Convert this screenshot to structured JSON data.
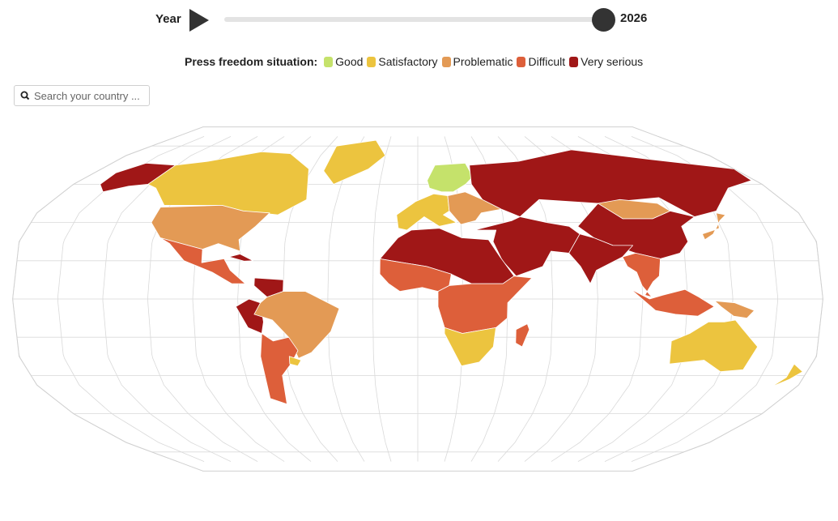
{
  "slider": {
    "label": "Year",
    "value": "2026"
  },
  "legend": {
    "title": "Press freedom situation:",
    "items": [
      {
        "label": "Good",
        "color": "#c5e26b"
      },
      {
        "label": "Satisfactory",
        "color": "#ecc43f"
      },
      {
        "label": "Problematic",
        "color": "#e39a55"
      },
      {
        "label": "Difficult",
        "color": "#dd5f3a"
      },
      {
        "label": "Very serious",
        "color": "#a01717"
      }
    ]
  },
  "search": {
    "placeholder": "Search your country ..."
  },
  "map": {
    "projection": "robinson",
    "graticule": true,
    "ocean_color": "#ffffff",
    "border_color": "#ffffff",
    "regions": [
      {
        "name": "Alaska",
        "situation": "Very serious"
      },
      {
        "name": "Canada",
        "situation": "Satisfactory"
      },
      {
        "name": "Greenland",
        "situation": "Satisfactory"
      },
      {
        "name": "United States",
        "situation": "Problematic"
      },
      {
        "name": "Mexico and Central America",
        "situation": "Difficult"
      },
      {
        "name": "Cuba",
        "situation": "Very serious"
      },
      {
        "name": "Venezuela",
        "situation": "Very serious"
      },
      {
        "name": "Peru",
        "situation": "Very serious"
      },
      {
        "name": "Brazil",
        "situation": "Problematic"
      },
      {
        "name": "Argentina and Chile",
        "situation": "Difficult"
      },
      {
        "name": "Uruguay",
        "situation": "Satisfactory"
      },
      {
        "name": "Nordic countries",
        "situation": "Good"
      },
      {
        "name": "Western Europe",
        "situation": "Satisfactory"
      },
      {
        "name": "Eastern Europe",
        "situation": "Problematic"
      },
      {
        "name": "Russia",
        "situation": "Very serious"
      },
      {
        "name": "China",
        "situation": "Very serious"
      },
      {
        "name": "Mongolia",
        "situation": "Problematic"
      },
      {
        "name": "Japan",
        "situation": "Problematic"
      },
      {
        "name": "India",
        "situation": "Very serious"
      },
      {
        "name": "Middle East",
        "situation": "Very serious"
      },
      {
        "name": "North Africa",
        "situation": "Very serious"
      },
      {
        "name": "West Africa",
        "situation": "Difficult"
      },
      {
        "name": "Central Africa",
        "situation": "Difficult"
      },
      {
        "name": "Southern Africa",
        "situation": "Satisfactory"
      },
      {
        "name": "Madagascar",
        "situation": "Difficult"
      },
      {
        "name": "Southeast Asia",
        "situation": "Difficult"
      },
      {
        "name": "Indonesia",
        "situation": "Difficult"
      },
      {
        "name": "Papua New Guinea",
        "situation": "Problematic"
      },
      {
        "name": "Australia",
        "situation": "Satisfactory"
      },
      {
        "name": "New Zealand",
        "situation": "Satisfactory"
      }
    ]
  }
}
